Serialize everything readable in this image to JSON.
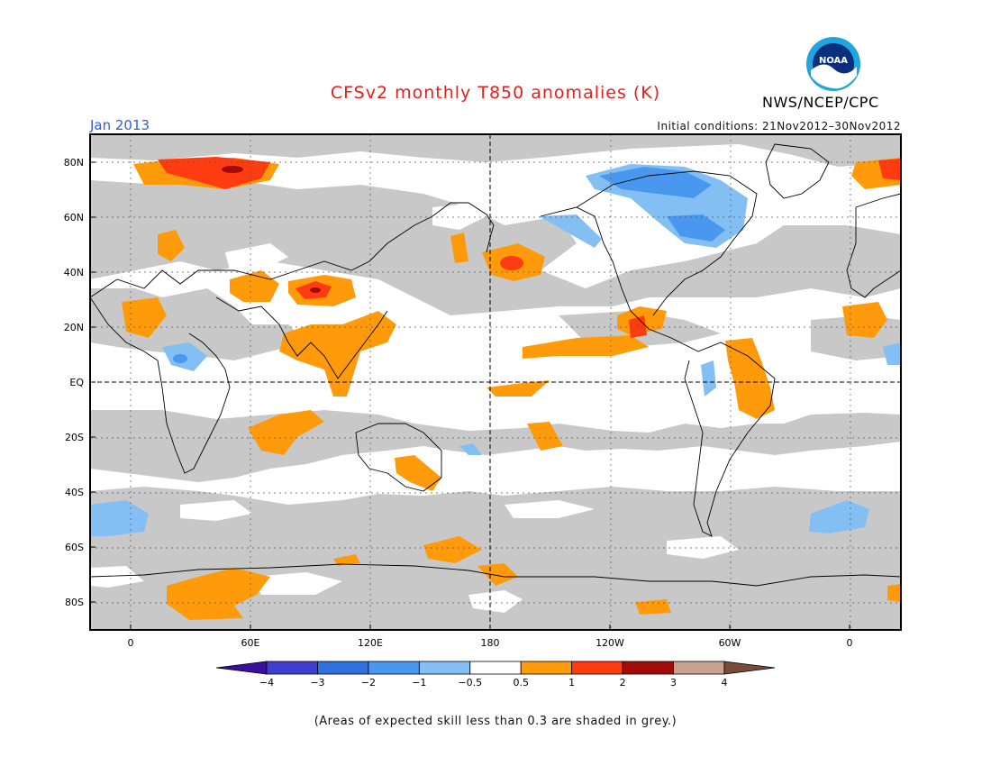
{
  "title": "CFSv2 monthly T850 anomalies (K)",
  "month_label": "Jan 2013",
  "initial_conditions": "Initial conditions: 21Nov2012–30Nov2012",
  "agency": "NWS/NCEP/CPC",
  "logo_text": "NOAA",
  "footnote": "(Areas of expected skill less than 0.3 are shaded in grey.)",
  "lat_labels": [
    "80N",
    "60N",
    "40N",
    "20N",
    "EQ",
    "20S",
    "40S",
    "60S",
    "80S"
  ],
  "lat_values": [
    80,
    60,
    40,
    20,
    0,
    -20,
    -40,
    -60,
    -80
  ],
  "lon_labels": [
    "0",
    "60E",
    "120E",
    "180",
    "120W",
    "60W",
    "0"
  ],
  "lon_values": [
    0,
    60,
    120,
    180,
    240,
    300,
    360
  ],
  "colorbar": {
    "ticks": [
      "−4",
      "−3",
      "−2",
      "−1",
      "−0.5",
      "0.5",
      "1",
      "2",
      "3",
      "4"
    ],
    "colors": [
      "#3a0f9e",
      "#3f3fcf",
      "#2f6fde",
      "#4a97ef",
      "#84bff4",
      "#ffffff",
      "#ff9a0a",
      "#ff3b10",
      "#a30a0a",
      "#c9a191",
      "#7a4a3a"
    ]
  },
  "colors": {
    "grey_skill": "#c8c8c8",
    "title_red": "#e8201c",
    "month_blue": "#2a62d8"
  }
}
